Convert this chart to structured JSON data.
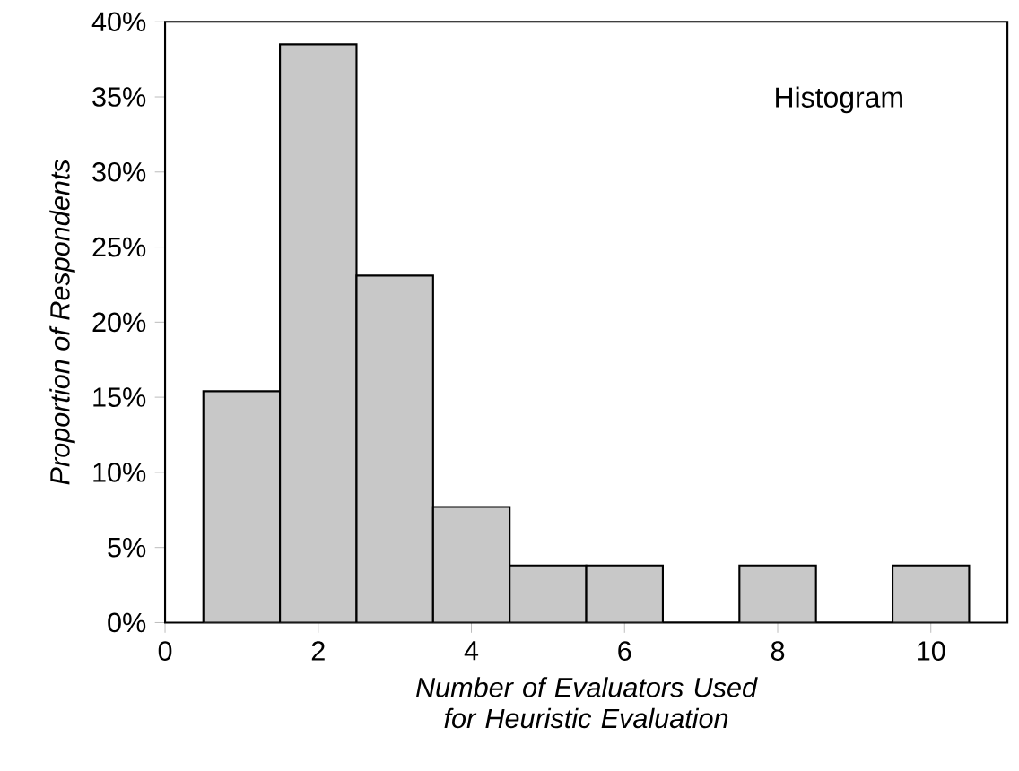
{
  "chart_data": {
    "type": "histogram",
    "xlabel": "Number of Evaluators Used for Heuristic Evaluation",
    "ylabel": "Proportion of Respondents",
    "annotations": [
      "Histogram"
    ],
    "bins": [
      0.5,
      1.5,
      2.5,
      3.5,
      4.5,
      5.5,
      6.5,
      7.5,
      8.5,
      9.5,
      10.5
    ],
    "values": [
      15.4,
      38.5,
      23.1,
      7.7,
      3.8,
      3.8,
      0,
      3.8,
      0,
      3.8
    ],
    "color": "#c8c8c8",
    "xlim": [
      0,
      11
    ],
    "xticks": [
      0,
      2,
      4,
      6,
      8,
      10
    ],
    "ylim": [
      0,
      40
    ],
    "yticks": [
      {
        "value": 0,
        "label": "0%"
      },
      {
        "value": 5,
        "label": "5%"
      },
      {
        "value": 10,
        "label": "10%"
      },
      {
        "value": 15,
        "label": "15%"
      },
      {
        "value": 20,
        "label": "20%"
      },
      {
        "value": 25,
        "label": "25%"
      },
      {
        "value": 30,
        "label": "30%"
      },
      {
        "value": 35,
        "label": "35%"
      },
      {
        "value": 40,
        "label": "40%"
      }
    ]
  }
}
